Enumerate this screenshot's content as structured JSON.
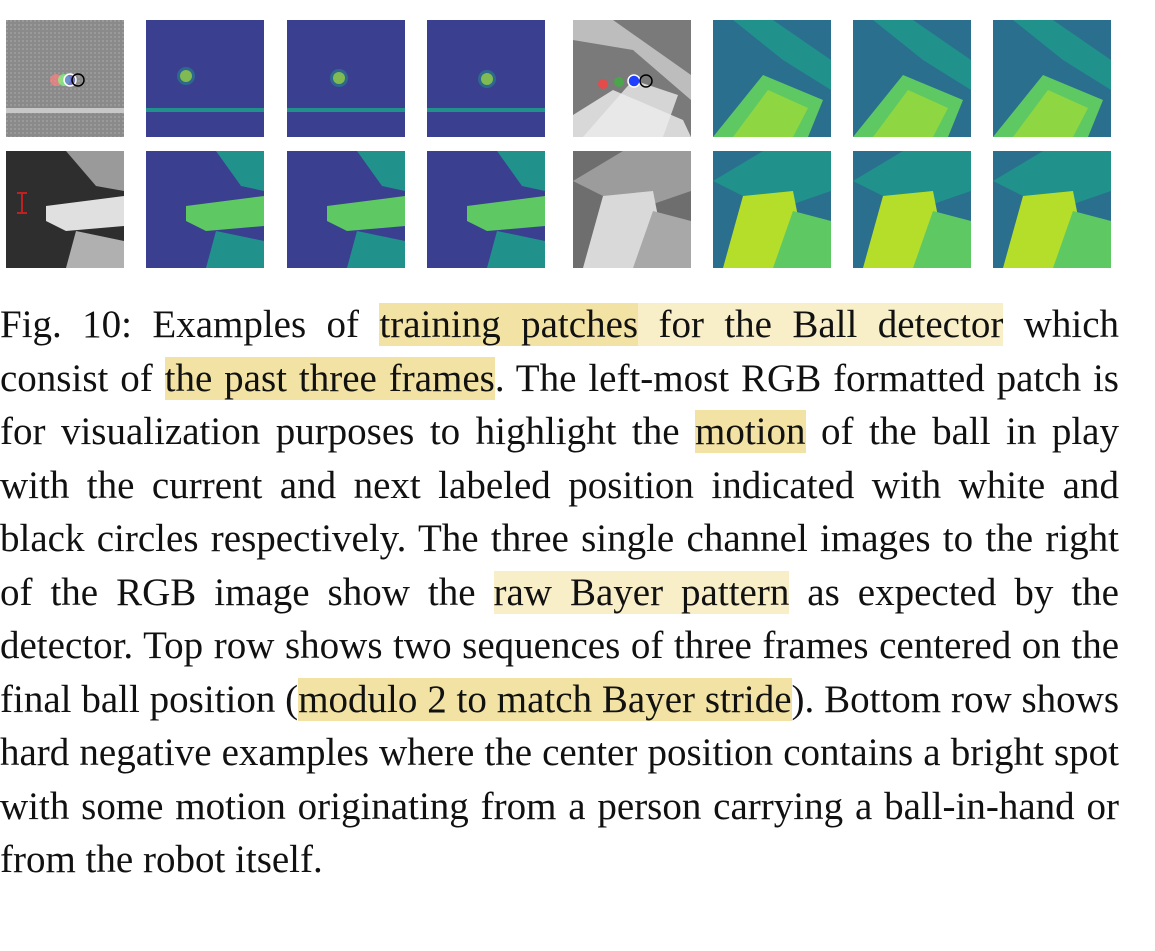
{
  "figure": {
    "rows": [
      {
        "row": "top",
        "patches": [
          {
            "kind": "rgb",
            "scene": "ball-track"
          },
          {
            "kind": "bayer",
            "scene": "ball-track",
            "frame": 1
          },
          {
            "kind": "bayer",
            "scene": "ball-track",
            "frame": 2
          },
          {
            "kind": "bayer",
            "scene": "ball-track",
            "frame": 3
          },
          {
            "kind": "rgb",
            "scene": "ball-robot"
          },
          {
            "kind": "bayer",
            "scene": "ball-robot",
            "frame": 1
          },
          {
            "kind": "bayer",
            "scene": "ball-robot",
            "frame": 2
          },
          {
            "kind": "bayer",
            "scene": "ball-robot",
            "frame": 3
          }
        ]
      },
      {
        "row": "bottom",
        "patches": [
          {
            "kind": "rgb",
            "scene": "hand-negative"
          },
          {
            "kind": "bayer",
            "scene": "hand-negative",
            "frame": 1
          },
          {
            "kind": "bayer",
            "scene": "hand-negative",
            "frame": 2
          },
          {
            "kind": "bayer",
            "scene": "hand-negative",
            "frame": 3
          },
          {
            "kind": "rgb",
            "scene": "robot-negative"
          },
          {
            "kind": "bayer",
            "scene": "robot-negative",
            "frame": 1
          },
          {
            "kind": "bayer",
            "scene": "robot-negative",
            "frame": 2
          },
          {
            "kind": "bayer",
            "scene": "robot-negative",
            "frame": 3
          }
        ]
      }
    ],
    "colors": {
      "viridis_low": "#3b3f8f",
      "viridis_mid": "#21918c",
      "viridis_high": "#dde318",
      "gray_bg": "#8c8c8c",
      "current_marker": "#ffffff",
      "next_marker": "#000000"
    }
  },
  "caption": {
    "label": "Fig. 10:",
    "t1": " Examples of ",
    "h1": "training patches",
    "h2": " for the Ball detector",
    "t2": " which consist of ",
    "h3": "the past three frames",
    "t3": ". The left-most RGB formatted patch is for visualization purposes to highlight the ",
    "h4": "motion",
    "t4": " of the ball in play with the current and next labeled position indicated with white and black circles respectively. The three single channel images to the right of the RGB image show the ",
    "h5": "raw Bayer pattern",
    "t5": " as expected by the detector. Top row shows two sequences of three frames centered on the final ball position (",
    "h6": "modulo 2 to match Bayer stride",
    "t6": "). Bottom row shows hard negative examples where the center position contains a bright spot with some motion originating from a person carrying a ball-in-hand or from the robot itself."
  }
}
